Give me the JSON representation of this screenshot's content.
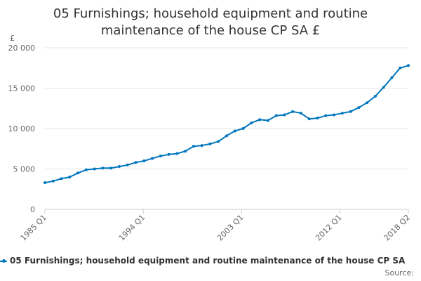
{
  "chart_data": {
    "type": "line",
    "title": "05 Furnishings; household equipment and routine maintenance of the house CP SA £",
    "title_lines": [
      "05 Furnishings; household equipment and routine",
      "maintenance of the house CP SA £"
    ],
    "ylabel": "£",
    "xlabel": "",
    "ylim": [
      0,
      20000
    ],
    "yticks": [
      0,
      5000,
      10000,
      15000,
      20000
    ],
    "ytick_labels": [
      "0",
      "5 000",
      "10 000",
      "15 000",
      "20 000"
    ],
    "xtick_labels": [
      "1985 Q1",
      "1994 Q1",
      "2003 Q1",
      "2012 Q1",
      "2018 Q2"
    ],
    "grid": true,
    "legend_position": "bottom",
    "series": [
      {
        "name": "05 Furnishings; household equipment and routine maintenance of the house CP SA",
        "color": "#0076be",
        "x_start": "1985 Q1",
        "x_end": "2018 Q2",
        "frequency": "quarterly",
        "values": [
          3300,
          3500,
          3800,
          4000,
          4500,
          4900,
          5000,
          5100,
          5100,
          5300,
          5500,
          5800,
          6000,
          6300,
          6600,
          6800,
          6900,
          7200,
          7800,
          7900,
          8100,
          8400,
          9100,
          9700,
          10000,
          10700,
          11100,
          11000,
          11600,
          11700,
          12100,
          11900,
          11200,
          11300,
          11600,
          11700,
          11900,
          12100,
          12600,
          13200,
          14000,
          15100,
          16300,
          17500,
          17800
        ]
      }
    ]
  },
  "legend": {
    "label": "05 Furnishings; household equipment and routine maintenance of the house CP SA"
  },
  "source": {
    "label": "Source:"
  }
}
